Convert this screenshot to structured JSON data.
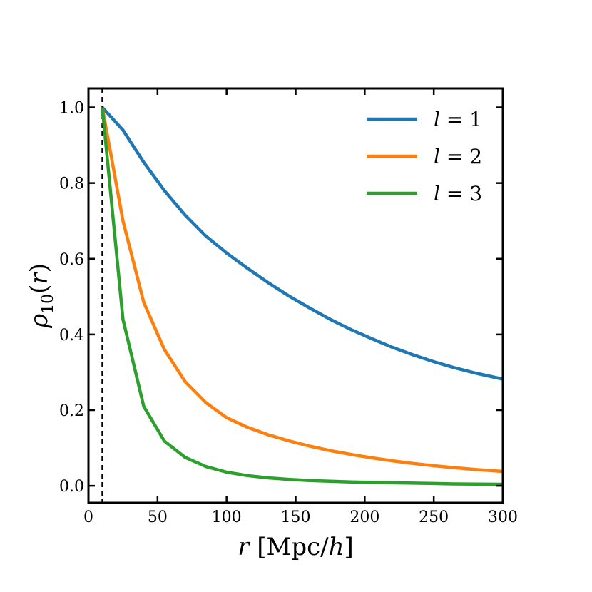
{
  "chart_data": {
    "type": "line",
    "title": "",
    "xlabel": {
      "italic": "r",
      "rest": " [Mpc/",
      "italic2": "h",
      "close": "]"
    },
    "ylabel": {
      "italic": "ρ",
      "sub": "10",
      "rest": "(",
      "italic2": "r",
      "close": ")"
    },
    "xlim": [
      0,
      300
    ],
    "ylim": [
      -0.045,
      1.05
    ],
    "xticks": [
      0,
      50,
      100,
      150,
      200,
      250,
      300
    ],
    "xtick_labels": [
      "0",
      "50",
      "100",
      "150",
      "200",
      "250",
      "300"
    ],
    "yticks": [
      0.0,
      0.2,
      0.4,
      0.6,
      0.8,
      1.0
    ],
    "ytick_labels": [
      "0.0",
      "0.2",
      "0.4",
      "0.6",
      "0.8",
      "1.0"
    ],
    "grid": false,
    "legend_position": "top-right",
    "vline": {
      "x": 10,
      "style": "dashed",
      "color": "#000000"
    },
    "series": [
      {
        "name": "l = 1",
        "color": "#1f77b4",
        "x": [
          10,
          25,
          40,
          55,
          70,
          85,
          100,
          115,
          130,
          145,
          160,
          175,
          190,
          205,
          220,
          235,
          250,
          265,
          280,
          300
        ],
        "y": [
          1.0,
          0.94,
          0.855,
          0.78,
          0.715,
          0.66,
          0.615,
          0.575,
          0.537,
          0.502,
          0.47,
          0.44,
          0.413,
          0.389,
          0.366,
          0.346,
          0.328,
          0.312,
          0.298,
          0.282
        ]
      },
      {
        "name": "l = 2",
        "color": "#ff7f0e",
        "x": [
          10,
          25,
          40,
          55,
          70,
          85,
          100,
          115,
          130,
          145,
          160,
          175,
          190,
          205,
          220,
          235,
          250,
          265,
          280,
          300
        ],
        "y": [
          1.0,
          0.7,
          0.485,
          0.36,
          0.275,
          0.22,
          0.18,
          0.155,
          0.135,
          0.119,
          0.105,
          0.093,
          0.083,
          0.074,
          0.066,
          0.059,
          0.053,
          0.048,
          0.043,
          0.038
        ]
      },
      {
        "name": "l = 3",
        "color": "#2ca02c",
        "x": [
          10,
          25,
          40,
          55,
          70,
          85,
          100,
          115,
          130,
          145,
          160,
          175,
          190,
          205,
          220,
          235,
          250,
          265,
          280,
          300
        ],
        "y": [
          1.0,
          0.44,
          0.21,
          0.118,
          0.075,
          0.051,
          0.036,
          0.027,
          0.021,
          0.017,
          0.014,
          0.012,
          0.01,
          0.009,
          0.008,
          0.007,
          0.006,
          0.005,
          0.0045,
          0.004
        ]
      }
    ],
    "legend": [
      {
        "pre": "l",
        "post": " = 1"
      },
      {
        "pre": "l",
        "post": " = 2"
      },
      {
        "pre": "l",
        "post": " = 3"
      }
    ]
  }
}
